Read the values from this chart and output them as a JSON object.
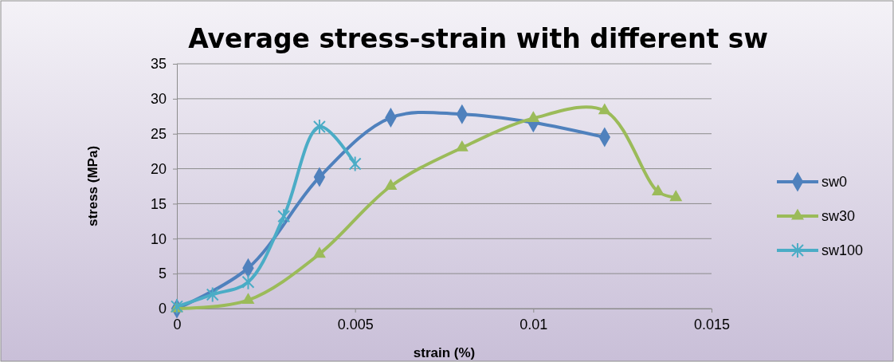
{
  "chart_data": {
    "type": "line",
    "title": "Average stress-strain with different sw",
    "xlabel": "strain (%)",
    "ylabel": "stress (MPa)",
    "xlim": [
      0,
      0.015
    ],
    "xticks": [
      0,
      0.005,
      0.01,
      0.015
    ],
    "ylim": [
      0,
      35
    ],
    "yticks": [
      0,
      5,
      10,
      15,
      20,
      25,
      30,
      35
    ],
    "grid": "y",
    "legend": "right",
    "series": [
      {
        "name": "sw0",
        "color": "#4f81bd",
        "marker": "diamond",
        "x": [
          0,
          0.002,
          0.004,
          0.006,
          0.008,
          0.01,
          0.012
        ],
        "values": [
          0,
          5.8,
          18.8,
          27.3,
          27.8,
          26.6,
          24.5
        ]
      },
      {
        "name": "sw30",
        "color": "#9bbb59",
        "marker": "triangle",
        "x": [
          0,
          0.002,
          0.004,
          0.006,
          0.008,
          0.01,
          0.012,
          0.0135,
          0.014
        ],
        "values": [
          0,
          1.2,
          7.8,
          17.5,
          23,
          27.2,
          28.3,
          16.7,
          15.9
        ]
      },
      {
        "name": "sw100",
        "color": "#4bacc6",
        "marker": "cross",
        "x": [
          0,
          0.001,
          0.002,
          0.003,
          0.004,
          0.005
        ],
        "values": [
          0.3,
          2,
          3.8,
          13.2,
          26,
          20.7
        ]
      }
    ]
  }
}
